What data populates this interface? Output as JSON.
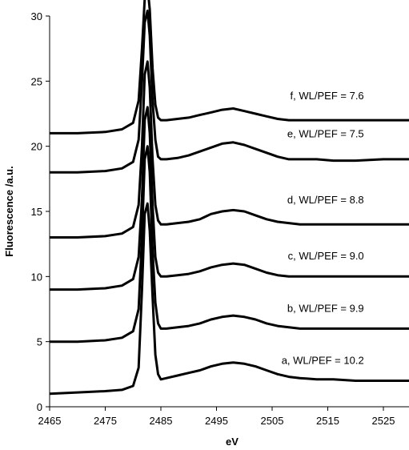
{
  "chart_data": {
    "type": "line",
    "xlabel": "eV",
    "ylabel": "Fluorescence /a.u.",
    "xlim": [
      2465,
      2530
    ],
    "ylim": [
      0,
      30
    ],
    "x_ticks": [
      2465,
      2475,
      2485,
      2495,
      2505,
      2515,
      2525
    ],
    "y_ticks": [
      0,
      5,
      10,
      15,
      20,
      25,
      30
    ],
    "grid": false,
    "legend": "none",
    "series": [
      {
        "name": "a, WL/PEF = 10.2",
        "label_text": "a, WL/PEF = 10.2",
        "label_anchor": [
          2521.5,
          3.3
        ],
        "x": [
          2465,
          2470,
          2475,
          2478,
          2480,
          2481,
          2481.6,
          2482.1,
          2482.6,
          2483.0,
          2483.5,
          2484.0,
          2484.5,
          2485,
          2486,
          2488,
          2490,
          2492,
          2494,
          2496,
          2498,
          2500,
          2502,
          2504,
          2506,
          2508,
          2510,
          2513,
          2516,
          2520,
          2525,
          2530
        ],
        "y": [
          1.0,
          1.1,
          1.2,
          1.3,
          1.6,
          3.0,
          9.0,
          14.8,
          15.6,
          13.5,
          8.5,
          4.0,
          2.5,
          2.1,
          2.2,
          2.4,
          2.6,
          2.8,
          3.1,
          3.3,
          3.4,
          3.3,
          3.1,
          2.8,
          2.5,
          2.3,
          2.2,
          2.1,
          2.1,
          2.0,
          2.0,
          2.0
        ]
      },
      {
        "name": "b, WL/PEF = 9.9",
        "label_text": "b, WL/PEF = 9.9",
        "label_anchor": [
          2521.5,
          7.3
        ],
        "x": [
          2465,
          2470,
          2475,
          2478,
          2480,
          2481,
          2481.6,
          2482.1,
          2482.6,
          2483.0,
          2483.5,
          2484.0,
          2484.5,
          2485,
          2486,
          2488,
          2490,
          2492,
          2494,
          2496,
          2498,
          2500,
          2502,
          2504,
          2506,
          2508,
          2510,
          2513,
          2516,
          2520,
          2525,
          2530
        ],
        "y": [
          5.0,
          5.0,
          5.1,
          5.3,
          5.8,
          7.5,
          13.0,
          19.0,
          20.0,
          18.0,
          12.0,
          8.0,
          6.4,
          6.0,
          6.0,
          6.1,
          6.2,
          6.4,
          6.7,
          6.9,
          7.0,
          6.9,
          6.7,
          6.4,
          6.2,
          6.1,
          6.0,
          6.0,
          6.0,
          6.0,
          6.0,
          6.0
        ]
      },
      {
        "name": "c, WL/PEF = 9.0",
        "label_text": "c, WL/PEF = 9.0",
        "label_anchor": [
          2521.5,
          11.3
        ],
        "x": [
          2465,
          2470,
          2475,
          2478,
          2480,
          2481,
          2481.6,
          2482.1,
          2482.6,
          2483.0,
          2483.5,
          2484.0,
          2484.5,
          2485,
          2486,
          2488,
          2490,
          2492,
          2494,
          2496,
          2498,
          2500,
          2502,
          2504,
          2506,
          2508,
          2510,
          2513,
          2516,
          2520,
          2525,
          2530
        ],
        "y": [
          9.0,
          9.0,
          9.1,
          9.3,
          9.8,
          11.5,
          16.0,
          22.0,
          23.0,
          21.0,
          15.5,
          11.5,
          10.3,
          10.0,
          10.0,
          10.1,
          10.2,
          10.4,
          10.7,
          10.9,
          11.0,
          10.9,
          10.6,
          10.3,
          10.1,
          10.0,
          10.0,
          10.0,
          10.0,
          10.0,
          10.0,
          10.0
        ]
      },
      {
        "name": "d, WL/PEF = 8.8",
        "label_text": "d, WL/PEF = 8.8",
        "label_anchor": [
          2521.5,
          15.6
        ],
        "x": [
          2465,
          2470,
          2475,
          2478,
          2480,
          2481,
          2481.6,
          2482.1,
          2482.6,
          2483.0,
          2483.5,
          2484.0,
          2484.5,
          2485,
          2486,
          2488,
          2490,
          2492,
          2494,
          2496,
          2498,
          2500,
          2502,
          2504,
          2506,
          2508,
          2510,
          2513,
          2516,
          2520,
          2525,
          2530
        ],
        "y": [
          13.0,
          13.0,
          13.1,
          13.3,
          13.8,
          15.5,
          20.0,
          25.5,
          26.5,
          24.5,
          19.0,
          15.5,
          14.3,
          14.0,
          14.0,
          14.1,
          14.2,
          14.4,
          14.8,
          15.0,
          15.1,
          15.0,
          14.7,
          14.4,
          14.2,
          14.1,
          14.0,
          14.0,
          14.0,
          14.0,
          14.0,
          14.0
        ]
      },
      {
        "name": "e, WL/PEF = 7.5",
        "label_text": "e, WL/PEF = 7.5",
        "label_anchor": [
          2521.5,
          20.7
        ],
        "x": [
          2465,
          2470,
          2475,
          2478,
          2480,
          2481,
          2481.6,
          2482.1,
          2482.6,
          2483.0,
          2483.5,
          2484.0,
          2484.5,
          2485,
          2486,
          2488,
          2490,
          2492,
          2494,
          2496,
          2498,
          2500,
          2502,
          2504,
          2506,
          2508,
          2510,
          2513,
          2516,
          2520,
          2525,
          2530
        ],
        "y": [
          18.0,
          18.0,
          18.1,
          18.3,
          18.8,
          20.5,
          25.0,
          29.5,
          30.4,
          28.5,
          23.5,
          20.5,
          19.2,
          19.0,
          19.0,
          19.1,
          19.3,
          19.6,
          19.9,
          20.2,
          20.3,
          20.1,
          19.8,
          19.5,
          19.2,
          19.0,
          19.0,
          19.0,
          18.9,
          18.9,
          19.0,
          19.0
        ]
      },
      {
        "name": "f, WL/PEF = 7.6",
        "label_text": "f, WL/PEF = 7.6",
        "label_anchor": [
          2521.5,
          23.6
        ],
        "x": [
          2465,
          2470,
          2475,
          2478,
          2480,
          2481,
          2481.6,
          2482.1,
          2482.6,
          2483.0,
          2483.5,
          2484.0,
          2484.5,
          2485,
          2486,
          2488,
          2490,
          2492,
          2494,
          2496,
          2498,
          2500,
          2502,
          2504,
          2506,
          2508,
          2510,
          2513,
          2516,
          2520,
          2525,
          2530
        ],
        "y": [
          21.0,
          21.0,
          21.1,
          21.3,
          21.8,
          23.5,
          27.5,
          31.3,
          32.3,
          30.5,
          26.0,
          23.2,
          22.2,
          22.0,
          22.0,
          22.1,
          22.2,
          22.4,
          22.6,
          22.8,
          22.9,
          22.7,
          22.5,
          22.3,
          22.1,
          22.0,
          22.0,
          22.0,
          22.0,
          22.0,
          22.0,
          22.0
        ]
      }
    ]
  }
}
